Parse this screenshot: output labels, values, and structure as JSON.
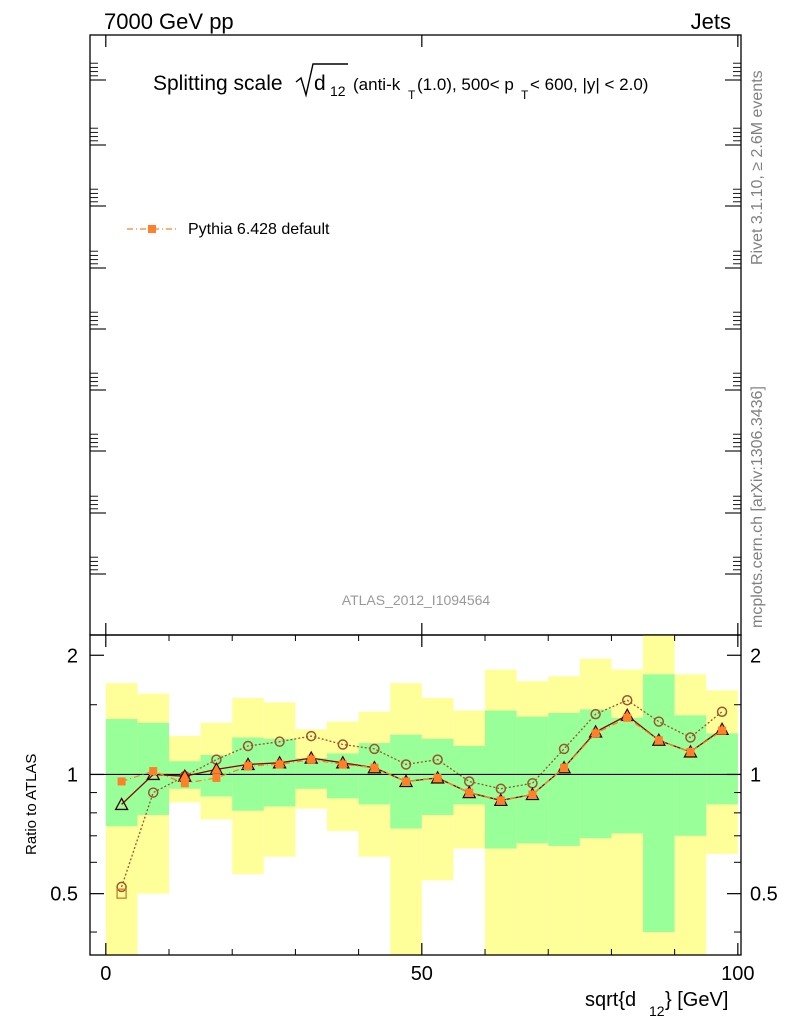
{
  "header": {
    "left": "7000 GeV pp",
    "right": "Jets"
  },
  "side_labels": {
    "top": "Rivet 3.1.10, ≥ 2.6M events",
    "bottom": "mcplots.cern.ch [arXiv:1306.3436]"
  },
  "title": {
    "lead": "Splitting scale",
    "sym": "d",
    "sym_sub": "12",
    "rest1": " (anti-k",
    "rest1_sub": "T",
    "rest2": "(1.0), 500< p",
    "rest2_sub": "T",
    "rest3": " < 600, |y| < 2.0)"
  },
  "legend": {
    "label": "Pythia 6.428 default"
  },
  "analysis_id": "ATLAS_2012_I1094564",
  "colors": {
    "mc": "#ff7f2a",
    "mc_alt": "#a0522d",
    "mc_dark": "#8b0000",
    "band_inner": "#99ff99",
    "band_outer": "#ffff99",
    "frame": "#000000"
  },
  "chart_data": {
    "type": "line",
    "xlabel": "sqrt{d",
    "xlabel_sub": "12",
    "xlabel_end": "} [GeV]",
    "ylabel": "Ratio to ATLAS",
    "xlim": [
      -2.5,
      100.5
    ],
    "ylim": [
      0.35,
      2.25
    ],
    "y_scale": "log",
    "x_ticks": [
      0,
      50,
      100
    ],
    "x_tick_labels": [
      "0",
      "50",
      "100"
    ],
    "y_ticks": [
      0.5,
      1,
      2
    ],
    "y_tick_labels": [
      "0.5",
      "1",
      "2"
    ],
    "bins": [
      [
        0,
        5
      ],
      [
        5,
        10
      ],
      [
        10,
        15
      ],
      [
        15,
        20
      ],
      [
        20,
        25
      ],
      [
        25,
        30
      ],
      [
        30,
        35
      ],
      [
        35,
        40
      ],
      [
        40,
        45
      ],
      [
        45,
        50
      ],
      [
        50,
        55
      ],
      [
        55,
        60
      ],
      [
        60,
        65
      ],
      [
        65,
        70
      ],
      [
        70,
        75
      ],
      [
        75,
        80
      ],
      [
        80,
        85
      ],
      [
        85,
        90
      ],
      [
        90,
        95
      ],
      [
        95,
        100
      ]
    ],
    "band_inner": [
      [
        0.74,
        1.38
      ],
      [
        0.79,
        1.35
      ],
      [
        0.92,
        1.08
      ],
      [
        0.88,
        1.12
      ],
      [
        0.81,
        1.24
      ],
      [
        0.83,
        1.23
      ],
      [
        0.92,
        1.1
      ],
      [
        0.87,
        1.13
      ],
      [
        0.84,
        1.2
      ],
      [
        0.73,
        1.26
      ],
      [
        0.79,
        1.23
      ],
      [
        0.84,
        1.18
      ],
      [
        0.65,
        1.45
      ],
      [
        0.67,
        1.4
      ],
      [
        0.66,
        1.43
      ],
      [
        0.69,
        1.46
      ],
      [
        0.71,
        1.39
      ],
      [
        0.4,
        1.79
      ],
      [
        0.7,
        1.41
      ],
      [
        0.84,
        1.27
      ]
    ],
    "band_outer": [
      [
        0.35,
        1.7
      ],
      [
        0.5,
        1.6
      ],
      [
        0.85,
        1.25
      ],
      [
        0.77,
        1.35
      ],
      [
        0.56,
        1.56
      ],
      [
        0.62,
        1.52
      ],
      [
        0.82,
        1.3
      ],
      [
        0.72,
        1.36
      ],
      [
        0.62,
        1.44
      ],
      [
        0.35,
        1.7
      ],
      [
        0.54,
        1.56
      ],
      [
        0.65,
        1.45
      ],
      [
        0.35,
        1.84
      ],
      [
        0.35,
        1.72
      ],
      [
        0.35,
        1.77
      ],
      [
        0.35,
        1.96
      ],
      [
        0.35,
        1.84
      ],
      [
        0.35,
        2.25
      ],
      [
        0.35,
        1.79
      ],
      [
        0.63,
        1.63
      ]
    ],
    "series": [
      {
        "name": "Pythia 6.428 default",
        "marker": "square",
        "style": "dashdot",
        "x": [
          2.5,
          7.5,
          12.5,
          17.5,
          22.5,
          27.5,
          32.5,
          37.5,
          42.5,
          47.5,
          52.5,
          57.5,
          62.5,
          67.5,
          72.5,
          77.5,
          82.5,
          87.5,
          92.5,
          97.5
        ],
        "y": [
          0.96,
          1.02,
          0.95,
          0.98,
          1.05,
          1.06,
          1.09,
          1.06,
          1.04,
          0.96,
          0.98,
          0.9,
          0.86,
          0.89,
          1.04,
          1.27,
          1.39,
          1.22,
          1.14,
          1.29
        ]
      },
      {
        "marker": "open-square",
        "style": "dashed",
        "x": [
          2.5
        ],
        "y": [
          0.5
        ]
      },
      {
        "marker": "open-circle",
        "style": "dotted",
        "x": [
          2.5,
          7.5,
          12.5,
          17.5,
          22.5,
          27.5,
          32.5,
          37.5,
          42.5,
          47.5,
          52.5,
          57.5,
          62.5,
          67.5,
          72.5,
          77.5,
          82.5,
          87.5,
          92.5,
          97.5
        ],
        "y": [
          0.52,
          0.9,
          0.99,
          1.09,
          1.18,
          1.21,
          1.25,
          1.19,
          1.16,
          1.06,
          1.09,
          0.96,
          0.92,
          0.95,
          1.16,
          1.42,
          1.54,
          1.36,
          1.24,
          1.44
        ]
      },
      {
        "marker": "open-triangle",
        "style": "solid",
        "x": [
          2.5,
          7.5,
          12.5,
          17.5,
          22.5,
          27.5,
          32.5,
          37.5,
          42.5,
          47.5,
          52.5,
          57.5,
          62.5,
          67.5,
          72.5,
          77.5,
          82.5,
          87.5,
          92.5,
          97.5
        ],
        "y": [
          0.84,
          1.0,
          0.99,
          1.03,
          1.06,
          1.07,
          1.1,
          1.07,
          1.04,
          0.96,
          0.98,
          0.9,
          0.86,
          0.89,
          1.04,
          1.28,
          1.41,
          1.22,
          1.14,
          1.3
        ]
      }
    ]
  }
}
